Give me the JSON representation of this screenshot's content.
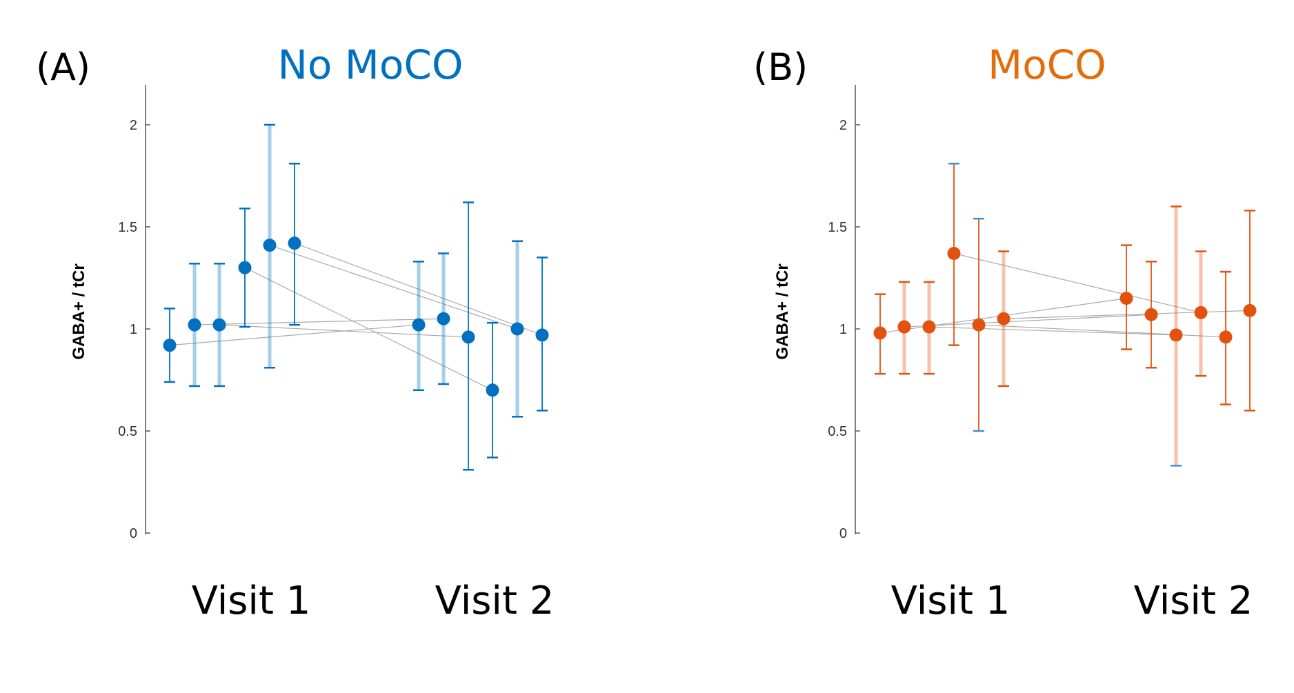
{
  "chart_data": [
    {
      "type": "scatter",
      "panel_label": "(A)",
      "title": "No MoCO",
      "color": "#0070c0",
      "ylabel": "GABA+ / tCr",
      "ylim": [
        0,
        2.2
      ],
      "yticks": [
        "0",
        "0.5",
        "1",
        "1.5",
        "2"
      ],
      "categories": [
        "Visit 1",
        "Visit 2"
      ],
      "visit1": [
        {
          "y": 0.92,
          "lo": 0.74,
          "hi": 1.1,
          "light": false
        },
        {
          "y": 1.02,
          "lo": 0.72,
          "hi": 1.32,
          "light": true
        },
        {
          "y": 1.02,
          "lo": 0.72,
          "hi": 1.32,
          "light": true
        },
        {
          "y": 1.3,
          "lo": 1.01,
          "hi": 1.59,
          "light": false
        },
        {
          "y": 1.41,
          "lo": 0.81,
          "hi": 2.0,
          "light": true
        },
        {
          "y": 1.42,
          "lo": 1.02,
          "hi": 1.81,
          "light": false
        }
      ],
      "visit2": [
        {
          "y": 1.02,
          "lo": 0.7,
          "hi": 1.33,
          "light": true
        },
        {
          "y": 1.05,
          "lo": 0.73,
          "hi": 1.37,
          "light": true
        },
        {
          "y": 0.96,
          "lo": 0.31,
          "hi": 1.62,
          "light": false
        },
        {
          "y": 0.7,
          "lo": 0.37,
          "hi": 1.03,
          "light": false
        },
        {
          "y": 1.0,
          "lo": 0.57,
          "hi": 1.43,
          "light": true
        },
        {
          "y": 0.97,
          "lo": 0.6,
          "hi": 1.35,
          "light": false
        }
      ],
      "pairs": [
        [
          0,
          0
        ],
        [
          1,
          1
        ],
        [
          2,
          2
        ],
        [
          3,
          3
        ],
        [
          4,
          4
        ],
        [
          5,
          5
        ]
      ]
    },
    {
      "type": "scatter",
      "panel_label": "(B)",
      "title": "MoCO",
      "color": "#e2520e",
      "title_color": "#e46c0a",
      "alt_cap_color": "#3a8fd6",
      "ylabel": "GABA+ / tCr",
      "ylim": [
        0,
        2.2
      ],
      "yticks": [
        "0",
        "0.5",
        "1",
        "1.5",
        "2"
      ],
      "categories": [
        "Visit 1",
        "Visit 2"
      ],
      "visit1": [
        {
          "y": 0.98,
          "lo": 0.78,
          "hi": 1.17,
          "light": false
        },
        {
          "y": 1.01,
          "lo": 0.78,
          "hi": 1.23,
          "light": true
        },
        {
          "y": 1.01,
          "lo": 0.78,
          "hi": 1.23,
          "light": true
        },
        {
          "y": 1.37,
          "lo": 0.92,
          "hi": 1.81,
          "light": false,
          "alt_hi": true
        },
        {
          "y": 1.02,
          "lo": 0.5,
          "hi": 1.54,
          "light": false,
          "alt_hi": true,
          "alt_lo": true
        },
        {
          "y": 1.05,
          "lo": 0.72,
          "hi": 1.38,
          "light": true
        }
      ],
      "visit2": [
        {
          "y": 1.15,
          "lo": 0.9,
          "hi": 1.41,
          "light": false
        },
        {
          "y": 1.07,
          "lo": 0.81,
          "hi": 1.33,
          "light": false
        },
        {
          "y": 0.97,
          "lo": 0.33,
          "hi": 1.6,
          "light": true,
          "alt_lo": true
        },
        {
          "y": 1.08,
          "lo": 0.77,
          "hi": 1.38,
          "light": true
        },
        {
          "y": 0.96,
          "lo": 0.63,
          "hi": 1.28,
          "light": false
        },
        {
          "y": 1.09,
          "lo": 0.6,
          "hi": 1.58,
          "light": false
        }
      ],
      "pairs": [
        [
          0,
          0
        ],
        [
          1,
          1
        ],
        [
          2,
          2
        ],
        [
          3,
          3
        ],
        [
          4,
          4
        ],
        [
          5,
          5
        ]
      ]
    }
  ]
}
